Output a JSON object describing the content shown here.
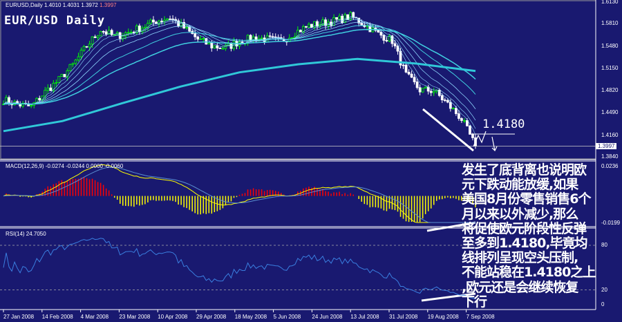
{
  "header": {
    "symbol": "EURUSD,Daily",
    "ohlc": "1.4010 1.4031 1.3972",
    "last": "1.3997",
    "title": "EUR/USD Daily"
  },
  "annotation": {
    "level": "1.4180",
    "note": [
      "发生了底背离也说明欧",
      "元下跌动能放缓,如果",
      "美国8月份零售销售6个",
      "月以来以外减少,那么",
      "将促使欧元阶段性反弹",
      "至多到1.4180,毕竟均",
      "线排列呈现空头压制,",
      "不能站稳在1.4180之上",
      ",欧元还是会继续恢复",
      "下行"
    ]
  },
  "colors": {
    "background": "#191970",
    "bull": "#00ff00",
    "ma": "#40c8e0",
    "macd_pos": "#ff0000",
    "macd_neg": "#ffff00",
    "signal": "#ffff00",
    "rsi": "#3a7fe0"
  },
  "chart_data": [
    {
      "type": "candlestick",
      "title": "EUR/USD Daily",
      "price_axis": [
        "1.6130",
        "1.5810",
        "1.5480",
        "1.5150",
        "1.4820",
        "1.4490",
        "1.4160",
        "1.3840"
      ],
      "ylim": [
        1.384,
        1.613
      ],
      "x_ticks": [
        "27 Jan 2008",
        "14 Feb 2008",
        "4 Mar 2008",
        "23 Mar 2008",
        "10 Apr 2008",
        "29 Apr 2008",
        "18 May 2008",
        "5 Jun 2008",
        "24 Jun 2008",
        "13 Jul 2008",
        "31 Jul 2008",
        "19 Aug 2008",
        "7 Sep 2008"
      ],
      "weekly_close": [
        1.468,
        1.462,
        1.458,
        1.48,
        1.498,
        1.52,
        1.548,
        1.572,
        1.562,
        1.568,
        1.576,
        1.585,
        1.59,
        1.575,
        1.558,
        1.548,
        1.545,
        1.555,
        1.56,
        1.558,
        1.555,
        1.568,
        1.578,
        1.582,
        1.586,
        1.592,
        1.58,
        1.566,
        1.556,
        1.505,
        1.483,
        1.482,
        1.462,
        1.44,
        1.3997
      ],
      "long_ma": [
        1.422,
        1.437,
        1.463,
        1.488,
        1.509,
        1.521,
        1.529,
        1.522,
        1.511
      ],
      "current": "1.3997"
    },
    {
      "type": "line",
      "title": "MACD(12,26,9) -0.0274 -0.0244 0.0000 -0.0060",
      "axis": [
        "0.0236",
        "-0.0199"
      ],
      "ylim": [
        -0.0199,
        0.0236
      ]
    },
    {
      "type": "line",
      "title": "RSI(14) 24.7050",
      "axis": [
        "80",
        "20",
        "0"
      ],
      "ylim": [
        0,
        100
      ],
      "levels": [
        80,
        20
      ]
    }
  ]
}
